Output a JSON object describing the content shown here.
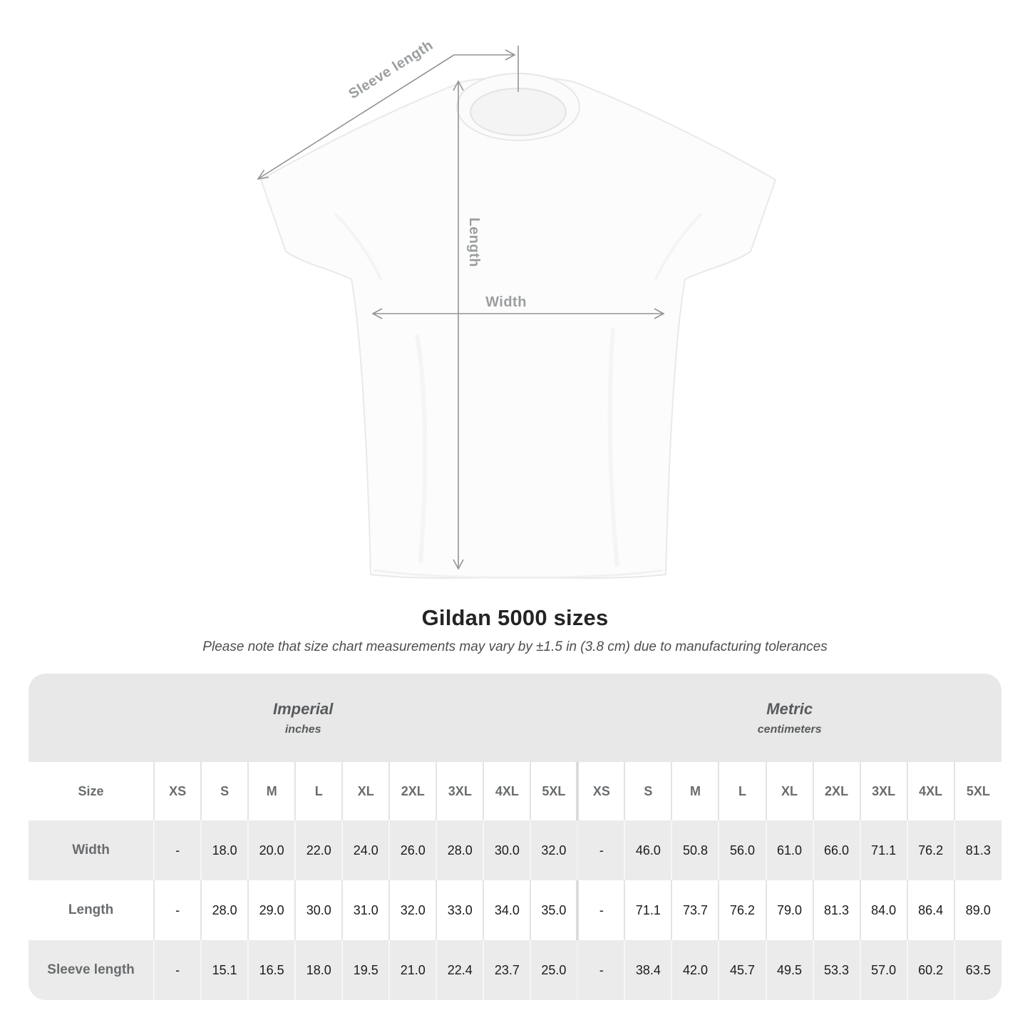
{
  "page": {
    "title": "Gildan 5000 sizes",
    "subtitle": "Please note that size chart measurements may vary by ±1.5 in (3.8 cm) due to manufacturing tolerances"
  },
  "diagram": {
    "sleeve_length_label": "Sleeve length",
    "length_label": "Length",
    "width_label": "Width"
  },
  "colors": {
    "measure_line": "#919497",
    "measure_label": "#9b9ea0",
    "band_bg": "#e8e8e8",
    "row_alt_bg": "#ebebeb",
    "header_text": "#696c6e",
    "value_text": "#1b1b1b"
  },
  "table": {
    "size_header": "Size",
    "unit_groups": [
      {
        "label": "Imperial",
        "sublabel": "inches"
      },
      {
        "label": "Metric",
        "sublabel": "centimeters"
      }
    ],
    "sizes": [
      "XS",
      "S",
      "M",
      "L",
      "XL",
      "2XL",
      "3XL",
      "4XL",
      "5XL"
    ],
    "rows": [
      {
        "label": "Width",
        "imperial": [
          "-",
          "18.0",
          "20.0",
          "22.0",
          "24.0",
          "26.0",
          "28.0",
          "30.0",
          "32.0"
        ],
        "metric": [
          "-",
          "46.0",
          "50.8",
          "56.0",
          "61.0",
          "66.0",
          "71.1",
          "76.2",
          "81.3"
        ]
      },
      {
        "label": "Length",
        "imperial": [
          "-",
          "28.0",
          "29.0",
          "30.0",
          "31.0",
          "32.0",
          "33.0",
          "34.0",
          "35.0"
        ],
        "metric": [
          "-",
          "71.1",
          "73.7",
          "76.2",
          "79.0",
          "81.3",
          "84.0",
          "86.4",
          "89.0"
        ]
      },
      {
        "label": "Sleeve length",
        "imperial": [
          "-",
          "15.1",
          "16.5",
          "18.0",
          "19.5",
          "21.0",
          "22.4",
          "23.7",
          "25.0"
        ],
        "metric": [
          "-",
          "38.4",
          "42.0",
          "45.7",
          "49.5",
          "53.3",
          "57.0",
          "60.2",
          "63.5"
        ]
      }
    ]
  }
}
